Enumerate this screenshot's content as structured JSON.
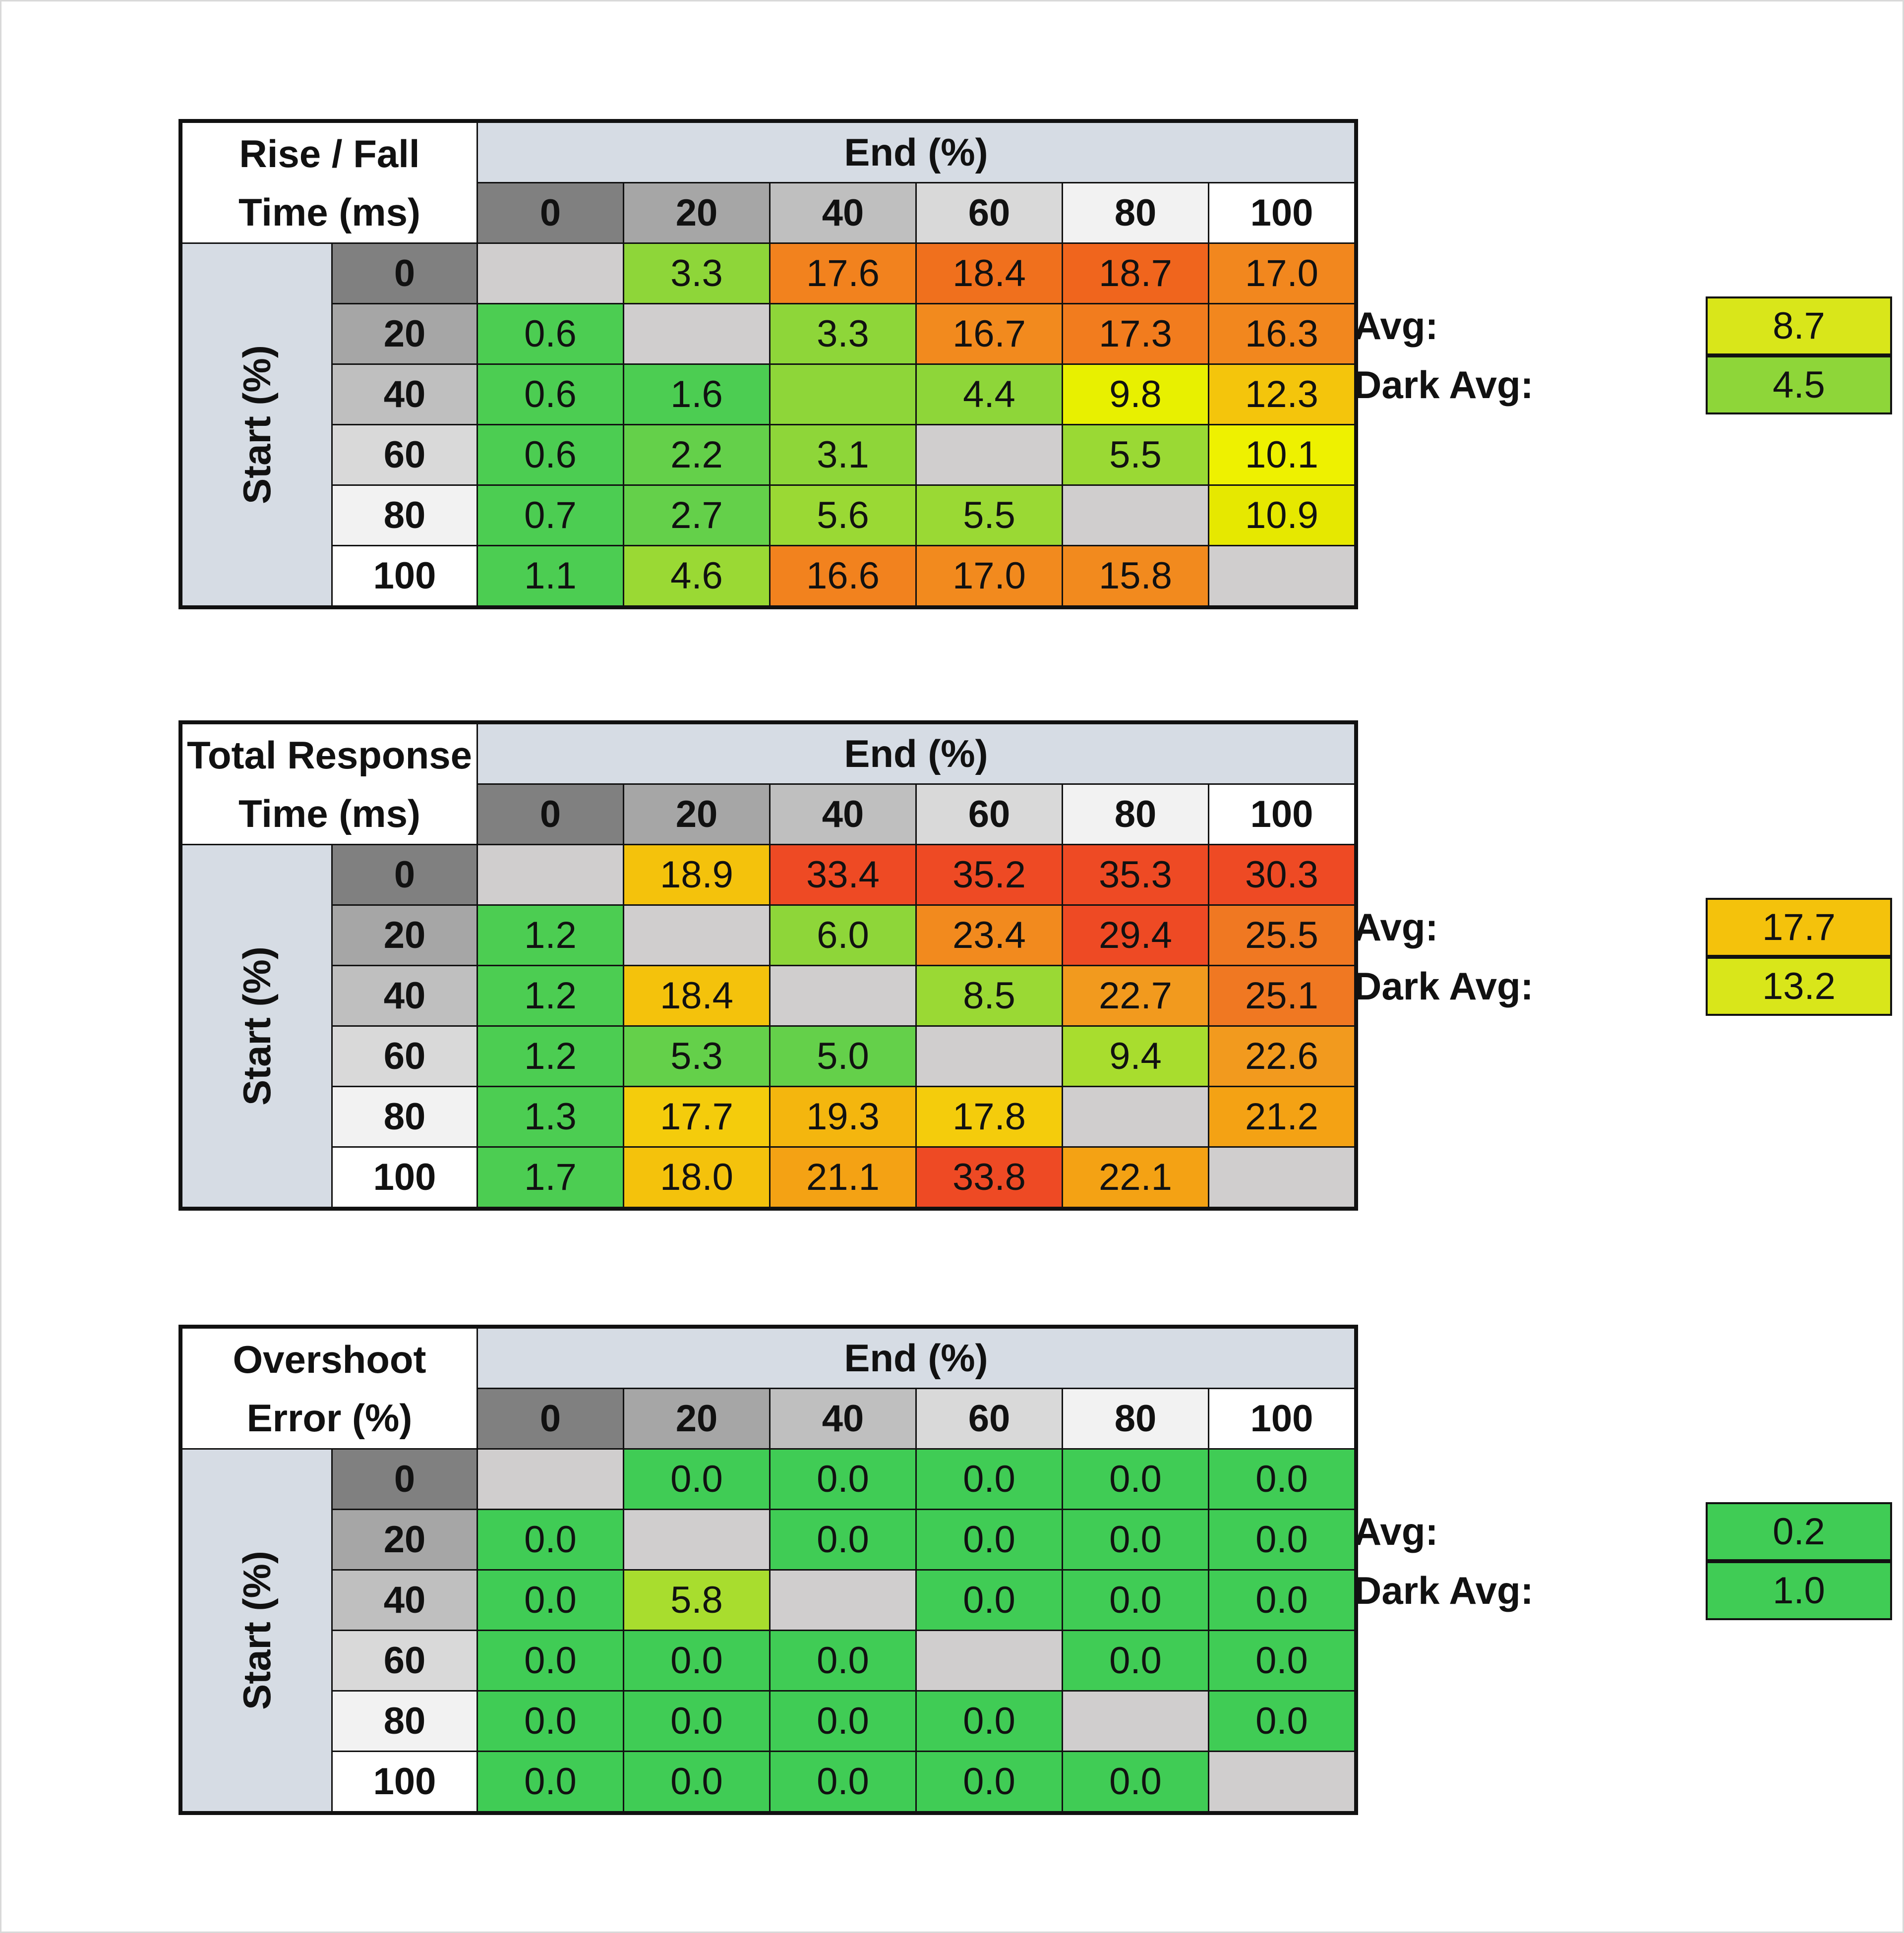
{
  "chart_data": [
    {
      "type": "table",
      "title": [
        "Rise / Fall",
        "Time (ms)"
      ],
      "col_header": "End (%)",
      "row_header": "Start (%)",
      "columns": [
        "0",
        "20",
        "40",
        "60",
        "80",
        "100"
      ],
      "rows": [
        "0",
        "20",
        "40",
        "60",
        "80",
        "100"
      ],
      "values": [
        [
          null,
          3.3,
          17.6,
          18.4,
          18.7,
          17.0
        ],
        [
          0.6,
          null,
          3.3,
          16.7,
          17.3,
          16.3
        ],
        [
          0.6,
          1.6,
          null,
          4.4,
          9.8,
          12.3
        ],
        [
          0.6,
          2.2,
          3.1,
          null,
          5.5,
          10.1
        ],
        [
          0.7,
          2.7,
          5.6,
          5.5,
          null,
          10.9
        ],
        [
          1.1,
          4.6,
          16.6,
          17.0,
          15.8,
          null
        ]
      ],
      "display": [
        [
          "",
          "3.3",
          "17.6",
          "18.4",
          "18.7",
          "17.0"
        ],
        [
          "0.6",
          "",
          "3.3",
          "16.7",
          "17.3",
          "16.3"
        ],
        [
          "0.6",
          "1.6",
          "",
          "4.4",
          "9.8",
          "12.3"
        ],
        [
          "0.6",
          "2.2",
          "3.1",
          "",
          "5.5",
          "10.1"
        ],
        [
          "0.7",
          "2.7",
          "5.6",
          "5.5",
          "",
          "10.9"
        ],
        [
          "1.1",
          "4.6",
          "16.6",
          "17.0",
          "15.8",
          ""
        ]
      ],
      "colors": [
        [
          "#d0cece",
          "#8ed639",
          "#f2821e",
          "#f0701d",
          "#f0651d",
          "#f2871e"
        ],
        [
          "#4ccd52",
          "#d0cece",
          "#8ed639",
          "#f28a1e",
          "#f27c1e",
          "#f2871e"
        ],
        [
          "#4ccd52",
          "#4ccd52",
          "#8ed639",
          "#8ed639",
          "#e8f000",
          "#f4c50c"
        ],
        [
          "#4ccd52",
          "#64d04a",
          "#8ed639",
          "#d0cece",
          "#9ad934",
          "#eef100"
        ],
        [
          "#4ccd52",
          "#64d04a",
          "#9ad934",
          "#9ad934",
          "#d0cece",
          "#e6e800"
        ],
        [
          "#4ccd52",
          "#9ad934",
          "#f2821e",
          "#f28a1e",
          "#f28a1e",
          "#d0cece"
        ]
      ],
      "avg_label": "Avg:",
      "avg": "8.7",
      "avg_color": "#d9e61a",
      "dark_avg_label": "Dark Avg:",
      "dark_avg": "4.5",
      "dark_avg_color": "#8ed639"
    },
    {
      "type": "table",
      "title": [
        "Total Response",
        "Time (ms)"
      ],
      "col_header": "End (%)",
      "row_header": "Start (%)",
      "columns": [
        "0",
        "20",
        "40",
        "60",
        "80",
        "100"
      ],
      "rows": [
        "0",
        "20",
        "40",
        "60",
        "80",
        "100"
      ],
      "values": [
        [
          null,
          18.9,
          33.4,
          35.2,
          35.3,
          30.3
        ],
        [
          1.2,
          null,
          6.0,
          23.4,
          29.4,
          25.5
        ],
        [
          1.2,
          18.4,
          null,
          8.5,
          22.7,
          25.1
        ],
        [
          1.2,
          5.3,
          5.0,
          null,
          9.4,
          22.6
        ],
        [
          1.3,
          17.7,
          19.3,
          17.8,
          null,
          21.2
        ],
        [
          1.7,
          18.0,
          21.1,
          33.8,
          22.1,
          null
        ]
      ],
      "display": [
        [
          "",
          "18.9",
          "33.4",
          "35.2",
          "35.3",
          "30.3"
        ],
        [
          "1.2",
          "",
          "6.0",
          "23.4",
          "29.4",
          "25.5"
        ],
        [
          "1.2",
          "18.4",
          "",
          "8.5",
          "22.7",
          "25.1"
        ],
        [
          "1.2",
          "5.3",
          "5.0",
          "",
          "9.4",
          "22.6"
        ],
        [
          "1.3",
          "17.7",
          "19.3",
          "17.8",
          "",
          "21.2"
        ],
        [
          "1.7",
          "18.0",
          "21.1",
          "33.8",
          "22.1",
          ""
        ]
      ],
      "colors": [
        [
          "#d0cece",
          "#f4c20c",
          "#ee4a24",
          "#ee4a24",
          "#ee4a24",
          "#ee4a24"
        ],
        [
          "#4ccd52",
          "#d0cece",
          "#8ed639",
          "#f28a1e",
          "#ee4a24",
          "#f07822"
        ],
        [
          "#4ccd52",
          "#f4c20c",
          "#d0cece",
          "#9ad934",
          "#f29a1e",
          "#f07822"
        ],
        [
          "#4ccd52",
          "#64d04a",
          "#64d04a",
          "#d0cece",
          "#a8dd2e",
          "#f29a1e"
        ],
        [
          "#4ccd52",
          "#f4cc0c",
          "#f4b60e",
          "#f4cc0c",
          "#d0cece",
          "#f4a214"
        ],
        [
          "#4ccd52",
          "#f4c20c",
          "#f4a214",
          "#ee4a24",
          "#f4a214",
          "#d0cece"
        ]
      ],
      "avg_label": "Avg:",
      "avg": "17.7",
      "avg_color": "#f4c20c",
      "dark_avg_label": "Dark Avg:",
      "dark_avg": "13.2",
      "dark_avg_color": "#d9e61a"
    },
    {
      "type": "table",
      "title": [
        "Overshoot",
        "Error (%)"
      ],
      "col_header": "End (%)",
      "row_header": "Start (%)",
      "columns": [
        "0",
        "20",
        "40",
        "60",
        "80",
        "100"
      ],
      "rows": [
        "0",
        "20",
        "40",
        "60",
        "80",
        "100"
      ],
      "values": [
        [
          null,
          0.0,
          0.0,
          0.0,
          0.0,
          0.0
        ],
        [
          0.0,
          null,
          0.0,
          0.0,
          0.0,
          0.0
        ],
        [
          0.0,
          5.8,
          null,
          0.0,
          0.0,
          0.0
        ],
        [
          0.0,
          0.0,
          0.0,
          null,
          0.0,
          0.0
        ],
        [
          0.0,
          0.0,
          0.0,
          0.0,
          null,
          0.0
        ],
        [
          0.0,
          0.0,
          0.0,
          0.0,
          0.0,
          null
        ]
      ],
      "display": [
        [
          "",
          "0.0",
          "0.0",
          "0.0",
          "0.0",
          "0.0"
        ],
        [
          "0.0",
          "",
          "0.0",
          "0.0",
          "0.0",
          "0.0"
        ],
        [
          "0.0",
          "5.8",
          "",
          "0.0",
          "0.0",
          "0.0"
        ],
        [
          "0.0",
          "0.0",
          "0.0",
          "",
          "0.0",
          "0.0"
        ],
        [
          "0.0",
          "0.0",
          "0.0",
          "0.0",
          "",
          "0.0"
        ],
        [
          "0.0",
          "0.0",
          "0.0",
          "0.0",
          "0.0",
          ""
        ]
      ],
      "colors": [
        [
          "#d0cece",
          "#40cc55",
          "#40cc55",
          "#40cc55",
          "#40cc55",
          "#40cc55"
        ],
        [
          "#40cc55",
          "#d0cece",
          "#40cc55",
          "#40cc55",
          "#40cc55",
          "#40cc55"
        ],
        [
          "#40cc55",
          "#a8dd2e",
          "#d0cece",
          "#40cc55",
          "#40cc55",
          "#40cc55"
        ],
        [
          "#40cc55",
          "#40cc55",
          "#40cc55",
          "#d0cece",
          "#40cc55",
          "#40cc55"
        ],
        [
          "#40cc55",
          "#40cc55",
          "#40cc55",
          "#40cc55",
          "#d0cece",
          "#40cc55"
        ],
        [
          "#40cc55",
          "#40cc55",
          "#40cc55",
          "#40cc55",
          "#40cc55",
          "#d0cece"
        ]
      ],
      "avg_label": "Avg:",
      "avg": "0.2",
      "avg_color": "#40cc55",
      "dark_avg_label": "Dark Avg:",
      "dark_avg": "1.0",
      "dark_avg_color": "#40cc55"
    }
  ],
  "header_colors": [
    "#808080",
    "#a6a6a6",
    "#bfbfbf",
    "#d9d9d9",
    "#f2f2f2",
    "#ffffff"
  ]
}
